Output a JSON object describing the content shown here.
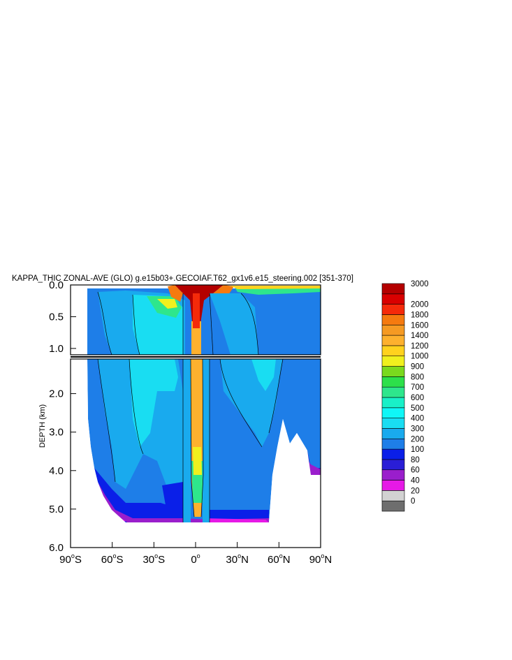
{
  "chart_data": {
    "type": "heatmap",
    "subtype": "filled-contour",
    "title": "KAPPA_THIC ZONAL-AVE (GLO) g.e15b03+.GECOIAF.T62_gx1v6.e15_steering.002 [351-370]",
    "xlabel": "",
    "ylabel": "DEPTH (km)",
    "xlim": [
      -90,
      90
    ],
    "ylim": [
      6.0,
      0.0
    ],
    "x_ticks": [
      {
        "value": -90,
        "deg": "90",
        "hemi": "S"
      },
      {
        "value": -60,
        "deg": "60",
        "hemi": "S"
      },
      {
        "value": -30,
        "deg": "30",
        "hemi": "S"
      },
      {
        "value": 0,
        "deg": "0",
        "hemi": ""
      },
      {
        "value": 30,
        "deg": "30",
        "hemi": "N"
      },
      {
        "value": 60,
        "deg": "60",
        "hemi": "N"
      },
      {
        "value": 90,
        "deg": "90",
        "hemi": "N"
      }
    ],
    "y_ticks_upper": [
      "0.0",
      "0.5",
      "1.0"
    ],
    "y_ticks_lower": [
      "2.0",
      "3.0",
      "4.0",
      "5.0",
      "6.0"
    ],
    "panels": [
      {
        "name": "upper",
        "depth_range": [
          0.0,
          1.1
        ]
      },
      {
        "name": "lower",
        "depth_range": [
          1.1,
          6.0
        ]
      }
    ],
    "colorbar": {
      "levels": [
        "0",
        "20",
        "40",
        "60",
        "80",
        "100",
        "200",
        "300",
        "400",
        "500",
        "600",
        "700",
        "800",
        "900",
        "1000",
        "1200",
        "1400",
        "1600",
        "1800",
        "2000",
        "3000"
      ],
      "colors": [
        "#6e6e6e",
        "#d2d2d2",
        "#e619e6",
        "#9a1ecc",
        "#2a1ed6",
        "#0a1fe8",
        "#1e7ee8",
        "#19aaee",
        "#19ddf2",
        "#0ff7f7",
        "#19f0c8",
        "#2ee68c",
        "#2de04a",
        "#7ad91e",
        "#f0f01e",
        "#ffd21e",
        "#fdb12e",
        "#f59a23",
        "#f57a0f",
        "#f52a0a",
        "#d90000",
        "#b40000"
      ]
    },
    "grid": false,
    "legend": "right"
  }
}
